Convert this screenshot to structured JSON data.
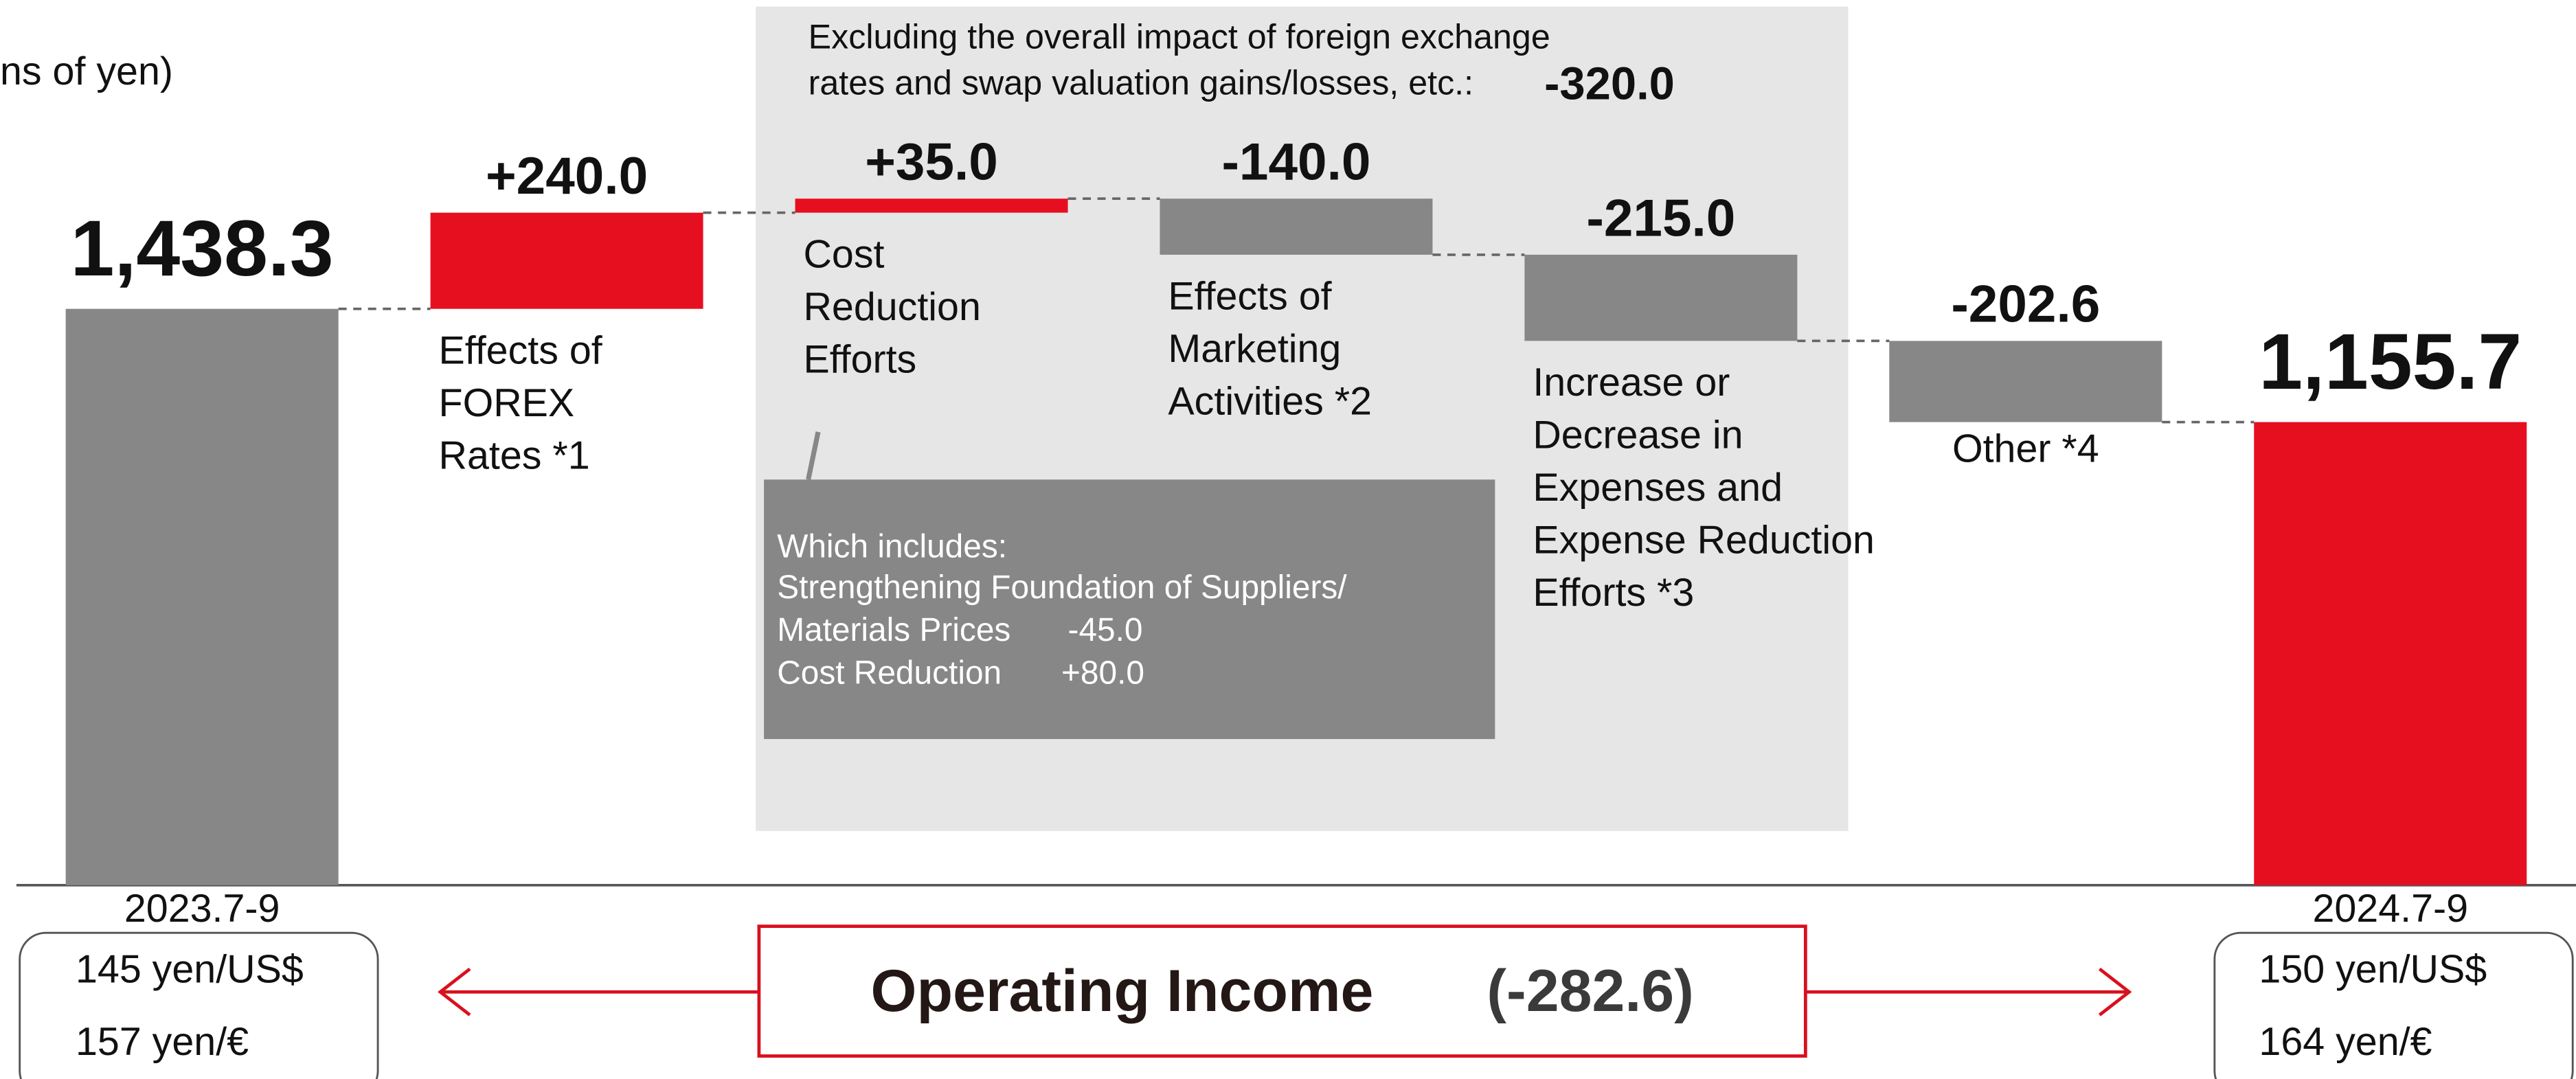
{
  "chart_data": {
    "type": "waterfall",
    "unit_label": "ns of yen)",
    "categories": [
      [
        "2023.7-9"
      ],
      [
        "Effects of",
        "FOREX",
        "Rates *1"
      ],
      [
        "Cost",
        "Reduction",
        "Efforts"
      ],
      [
        "Effects of",
        "Marketing",
        "Activities *2"
      ],
      [
        "Increase or",
        "Decrease in",
        "Expenses and",
        "Expense Reduction",
        "Efforts *3"
      ],
      [
        "Other *4"
      ],
      [
        "2024.7-9"
      ]
    ],
    "measure": [
      "absolute",
      "relative",
      "relative",
      "relative",
      "relative",
      "relative",
      "total"
    ],
    "values": [
      1438.3,
      240,
      35,
      -140,
      -215,
      -202.6,
      1155.7
    ],
    "value_labels": [
      "1,438.3",
      "+240.0",
      "+35.0",
      "-140.0",
      "-215.0",
      "-202.6",
      "1,155.7"
    ],
    "colors": [
      "#878787",
      "#e60f20",
      "#e60f20",
      "#878787",
      "#878787",
      "#878787",
      "#e60f20"
    ],
    "ylim": [
      0,
      2000
    ],
    "annotations": {
      "bracket_note": {
        "lines": [
          "Excluding the overall impact of foreign exchange",
          "rates and swap valuation gains/losses, etc.:"
        ],
        "value": "-320.0"
      },
      "inner_note": {
        "title": "Which includes:",
        "line": "Strengthening Foundation of Suppliers/",
        "items": [
          {
            "label": "Materials Prices",
            "value": "-45.0"
          },
          {
            "label": "Cost Reduction",
            "value": "+80.0"
          }
        ]
      },
      "exchange_rates": [
        [
          "145 yen/US$",
          "157 yen/€"
        ],
        [
          "150 yen/US$",
          "164 yen/€"
        ]
      ],
      "summary": {
        "label": "Operating Income",
        "value": "(-282.6)"
      }
    }
  }
}
